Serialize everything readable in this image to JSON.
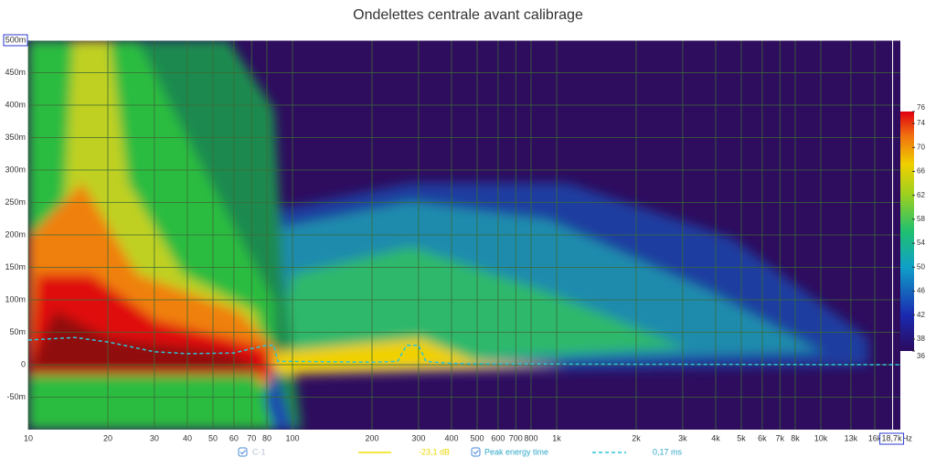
{
  "chart_data": {
    "type": "spectrogram",
    "title": "Ondelettes centrale avant calibrage",
    "x_label": "Hz",
    "xscale": "log",
    "xlim": [
      10,
      20000
    ],
    "xticks": [
      10,
      20,
      30,
      40,
      50,
      60,
      70,
      80,
      100,
      200,
      300,
      400,
      500,
      600,
      700,
      800,
      {
        "value": 1000,
        "label": "1k"
      },
      {
        "value": 2000,
        "label": "2k"
      },
      {
        "value": 3000,
        "label": "3k"
      },
      {
        "value": 4000,
        "label": "4k"
      },
      {
        "value": 5000,
        "label": "5k"
      },
      {
        "value": 6000,
        "label": "6k"
      },
      {
        "value": 7000,
        "label": "7k"
      },
      {
        "value": 8000,
        "label": "8k"
      },
      {
        "value": 10000,
        "label": "10k"
      },
      {
        "value": 13000,
        "label": "13k"
      },
      {
        "value": 16000,
        "label": "16k"
      }
    ],
    "ylim": [
      -0.1,
      0.5
    ],
    "yticks": [
      {
        "value": -0.05,
        "label": "-50m"
      },
      0,
      {
        "value": 0.05,
        "label": "50m"
      },
      {
        "value": 0.1,
        "label": "100m"
      },
      {
        "value": 0.15,
        "label": "150m"
      },
      {
        "value": 0.2,
        "label": "200m"
      },
      {
        "value": 0.25,
        "label": "250m"
      },
      {
        "value": 0.3,
        "label": "300m"
      },
      {
        "value": 0.35,
        "label": "350m"
      },
      {
        "value": 0.4,
        "label": "400m"
      },
      {
        "value": 0.45,
        "label": "450m"
      }
    ],
    "x_cursor": {
      "value": 18700,
      "label": "18,7k"
    },
    "y_cursor": {
      "value": 0.5,
      "label": "500m"
    },
    "grid": true,
    "colorbar": {
      "lim": [
        36,
        76
      ],
      "ticks": [
        36,
        38,
        42,
        46,
        50,
        54,
        58,
        62,
        66,
        70,
        74,
        76
      ]
    },
    "series": [
      {
        "name": "Peak energy time",
        "color": "#2ec4d6",
        "x": [
          10,
          15,
          20,
          30,
          40,
          60,
          70,
          80,
          85,
          88,
          100,
          200,
          250,
          270,
          300,
          320,
          400,
          1000,
          20000
        ],
        "values": [
          0.038,
          0.042,
          0.035,
          0.02,
          0.017,
          0.018,
          0.025,
          0.03,
          0.03,
          0.005,
          0.005,
          0.004,
          0.005,
          0.03,
          0.03,
          0.005,
          0.002,
          0.001,
          0
        ]
      }
    ],
    "legend": {
      "c1": "C-1",
      "level": "-23,1 dB",
      "peak": "Peak energy time",
      "peak_value": "0,17 ms"
    }
  }
}
